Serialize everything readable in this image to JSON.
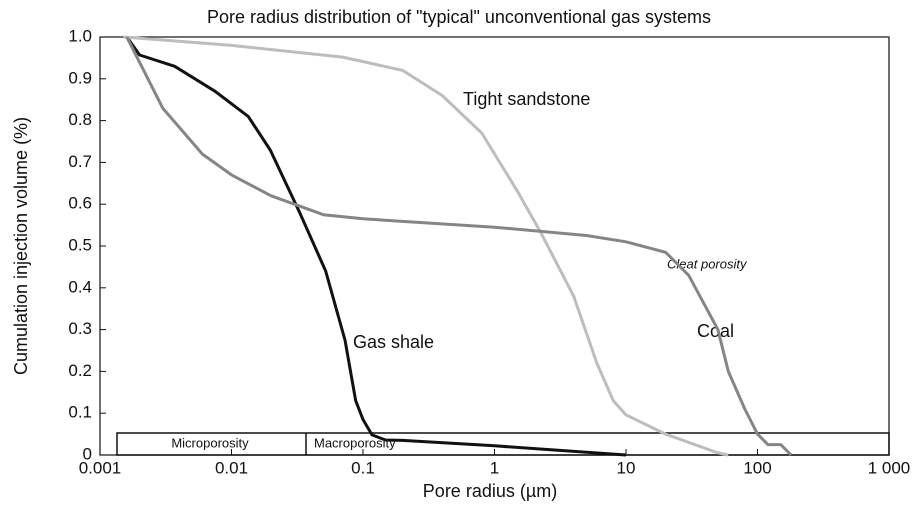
{
  "chart_data": {
    "type": "line",
    "title": "Pore radius distribution of \"typical\" unconventional gas systems",
    "x_label": "Pore radius (µm)",
    "y_label": "Cumulation injection volume (%)",
    "xscale": "log",
    "xlim": [
      0.001,
      1000
    ],
    "ylim": [
      0,
      1
    ],
    "xticks": [
      0.001,
      0.01,
      0.1,
      1,
      10,
      100,
      {
        "value": 1000,
        "label": "1 000"
      }
    ],
    "yticks": [
      0,
      0.1,
      0.2,
      0.3,
      0.4,
      0.5,
      0.6,
      0.7,
      0.8,
      0.9,
      {
        "value": 1,
        "label": "1.0"
      }
    ],
    "series": [
      {
        "name": "Gas shale",
        "color": "#111111",
        "x": [
          0.0016,
          0.002,
          0.0037,
          0.0075,
          0.0134,
          0.0197,
          0.033,
          0.052,
          0.073,
          0.088,
          0.1,
          0.117,
          0.148,
          0.2,
          1,
          10
        ],
        "values": [
          1.0,
          0.957,
          0.93,
          0.87,
          0.81,
          0.73,
          0.58,
          0.44,
          0.275,
          0.13,
          0.085,
          0.048,
          0.036,
          0.035,
          0.022,
          0
        ]
      },
      {
        "name": "Tight sandstone",
        "color": "#bdbdbd",
        "x": [
          0.0015,
          0.01,
          0.07,
          0.2,
          0.4,
          0.8,
          1.5,
          2.24,
          4,
          6,
          8,
          10,
          20,
          50,
          60
        ],
        "values": [
          1.0,
          0.98,
          0.952,
          0.92,
          0.86,
          0.77,
          0.63,
          0.533,
          0.38,
          0.22,
          0.13,
          0.096,
          0.05,
          0.005,
          0
        ]
      },
      {
        "name": "Coal",
        "color": "#858585",
        "x": [
          0.0016,
          0.003,
          0.006,
          0.01,
          0.02,
          0.05,
          0.1,
          1,
          5,
          10,
          20,
          30,
          50,
          60,
          80,
          100,
          120,
          150,
          180
        ],
        "values": [
          1.0,
          0.83,
          0.72,
          0.67,
          0.62,
          0.575,
          0.565,
          0.545,
          0.525,
          0.51,
          0.485,
          0.43,
          0.3,
          0.2,
          0.11,
          0.05,
          0.025,
          0.025,
          0
        ]
      }
    ],
    "annotations": [
      "Cleat porosity",
      "Microporosity",
      "Macroporosity"
    ]
  }
}
